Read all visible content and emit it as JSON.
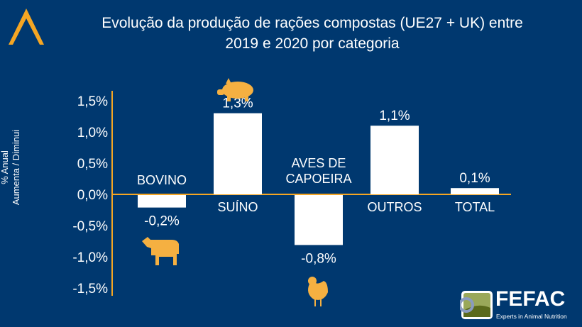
{
  "chart_data": {
    "type": "bar",
    "title": "Evolução da produção de rações compostas (UE27 + UK) entre 2019 e 2020 por categoria",
    "ylabel_line1": "% Anual",
    "ylabel_line2": "Aumenta / Diminui",
    "categories": [
      "BOVINO",
      "SUÍNO",
      "AVES DE CAPOEIRA",
      "OUTROS",
      "TOTAL"
    ],
    "values": [
      -0.2,
      1.3,
      -0.8,
      1.1,
      0.1
    ],
    "data_labels": [
      "-0,2%",
      "1,3%",
      "-0,8%",
      "1,1%",
      "0,1%"
    ],
    "ylim": [
      -1.5,
      1.5
    ],
    "yticks": [
      1.5,
      1.0,
      0.5,
      0.0,
      -0.5,
      -1.0,
      -1.5
    ],
    "ytick_labels": [
      "1,5%",
      "1,0%",
      "0,5%",
      "0,0%",
      "-0,5%",
      "-1,0%",
      "-1,5%"
    ],
    "grid": false,
    "legend": "none",
    "icons": [
      "cow-icon",
      "pig-icon",
      "chicken-icon"
    ],
    "colors": {
      "background": "#00386f",
      "bar": "#ffffff",
      "axis": "#f5a623",
      "icon": "#f5b041"
    }
  },
  "logo": {
    "name": "FEFAC",
    "tagline": "Experts in Animal Nutrition"
  }
}
